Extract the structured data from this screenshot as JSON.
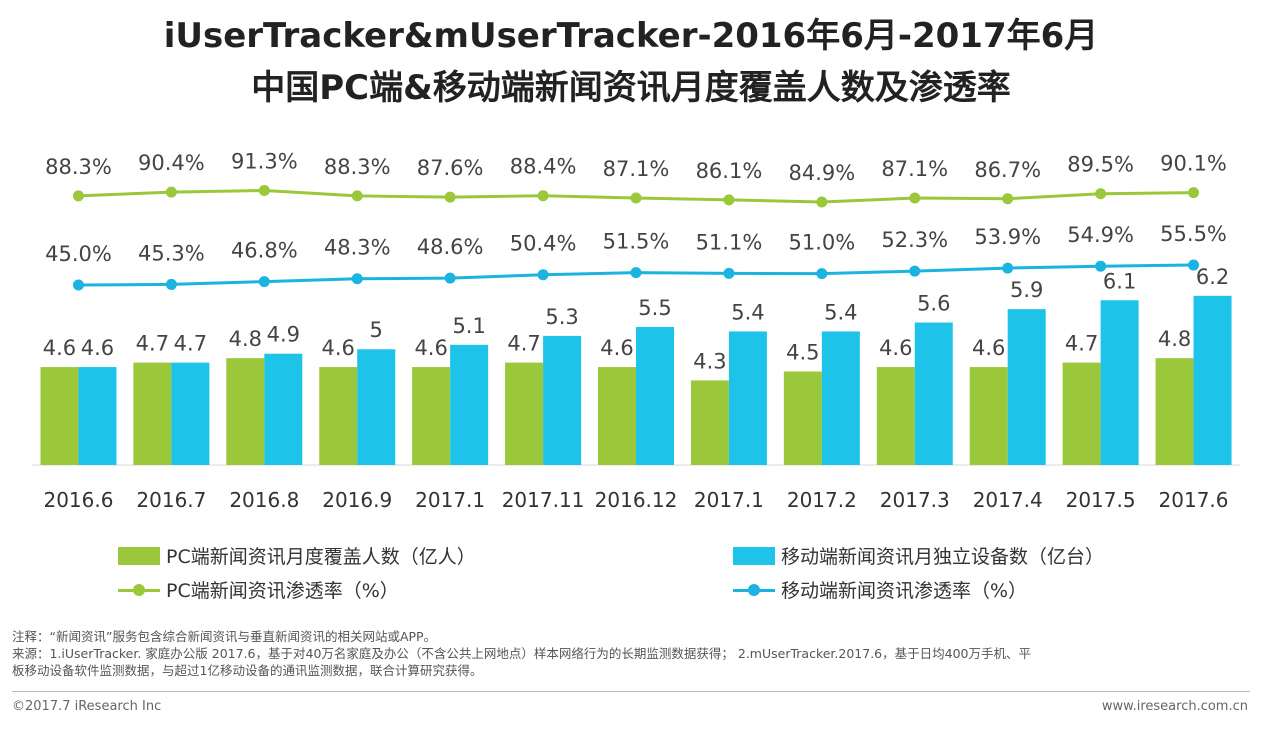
{
  "title_line1": "iUserTracker&mUserTracker-2016年6月-2017年6月",
  "title_line2": "中国PC端&移动端新闻资讯月度覆盖人数及渗透率",
  "chart_data": {
    "type": "bar+line",
    "categories": [
      "2016.6",
      "2016.7",
      "2016.8",
      "2016.9",
      "2017.1",
      "2017.11",
      "2016.12",
      "2017.1",
      "2017.2",
      "2017.3",
      "2017.4",
      "2017.5",
      "2017.6"
    ],
    "series": [
      {
        "name": "PC端新闻资讯月度覆盖人数（亿人）",
        "type": "bar",
        "color": "#9BC83B",
        "values": [
          4.6,
          4.7,
          4.8,
          4.6,
          4.6,
          4.7,
          4.6,
          4.3,
          4.5,
          4.6,
          4.6,
          4.7,
          4.8
        ],
        "labels": [
          "4.6",
          "4.7",
          "4.8",
          "4.6",
          "4.6",
          "4.7",
          "4.6",
          "4.3",
          "4.5",
          "4.6",
          "4.6",
          "4.7",
          "4.8"
        ]
      },
      {
        "name": "移动端新闻资讯月独立设备数（亿台）",
        "type": "bar",
        "color": "#1EC3EA",
        "values": [
          4.6,
          4.7,
          4.9,
          5,
          5.1,
          5.3,
          5.5,
          5.4,
          5.4,
          5.6,
          5.9,
          6.1,
          6.2
        ],
        "labels": [
          "4.6",
          "4.7",
          "4.9",
          "5",
          "5.1",
          "5.3",
          "5.5",
          "5.4",
          "5.4",
          "5.6",
          "5.9",
          "6.1",
          "6.2"
        ]
      },
      {
        "name": "PC端新闻资讯渗透率（%）",
        "type": "line",
        "color": "#9BC83B",
        "values": [
          88.3,
          90.4,
          91.3,
          88.3,
          87.6,
          88.4,
          87.1,
          86.1,
          84.9,
          87.1,
          86.7,
          89.5,
          90.1
        ],
        "labels": [
          "88.3%",
          "90.4%",
          "91.3%",
          "88.3%",
          "87.6%",
          "88.4%",
          "87.1%",
          "86.1%",
          "84.9%",
          "87.1%",
          "86.7%",
          "89.5%",
          "90.1%"
        ]
      },
      {
        "name": "移动端新闻资讯渗透率（%）",
        "type": "line",
        "color": "#1BB4E0",
        "values": [
          45.0,
          45.3,
          46.8,
          48.3,
          48.6,
          50.4,
          51.5,
          51.1,
          51.0,
          52.3,
          53.9,
          54.9,
          55.5
        ],
        "labels": [
          "45.0%",
          "45.3%",
          "46.8%",
          "48.3%",
          "48.6%",
          "50.4%",
          "51.5%",
          "51.1%",
          "51.0%",
          "52.3%",
          "53.9%",
          "54.9%",
          "55.5%"
        ]
      }
    ]
  },
  "legend": {
    "pc_bar": "PC端新闻资讯月度覆盖人数（亿人）",
    "mobile_bar": "移动端新闻资讯月独立设备数（亿台）",
    "pc_line": "PC端新闻资讯渗透率（%）",
    "mobile_line": "移动端新闻资讯渗透率（%）"
  },
  "colors": {
    "pc": "#9BC83B",
    "mobile_bar": "#1EC3EA",
    "mobile_line": "#1BB4E0"
  },
  "notes": {
    "note": "注释：“新闻资讯”服务包含综合新闻资讯与垂直新闻资讯的相关网站或APP。",
    "source_line1": "来源：1.iUserTracker. 家庭办公版 2017.6，基于对40万名家庭及办公（不含公共上网地点）样本网络行为的长期监测数据获得； 2.mUserTracker.2017.6，基于日均400万手机、平",
    "source_line2": "板移动设备软件监测数据，与超过1亿移动设备的通讯监测数据，联合计算研究获得。"
  },
  "footer": {
    "copyright": "©2017.7 iResearch Inc",
    "website": "www.iresearch.com.cn"
  }
}
